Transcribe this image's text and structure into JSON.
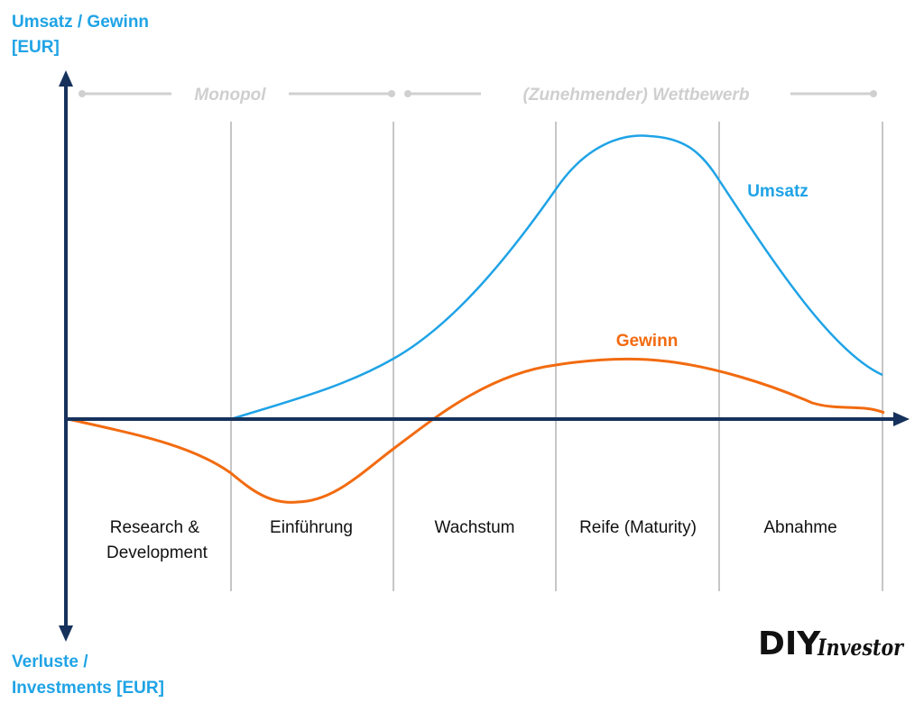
{
  "axes": {
    "y_positive_label": [
      "Umsatz / Gewinn",
      "[EUR]"
    ],
    "y_negative_label": [
      "Verluste /",
      "Investments [EUR]"
    ]
  },
  "eras": [
    {
      "label": "Monopol"
    },
    {
      "label": "(Zunehmender) Wettbewerb"
    }
  ],
  "phases": [
    {
      "label": [
        "Research &",
        "Development"
      ]
    },
    {
      "label": [
        "Einführung"
      ]
    },
    {
      "label": [
        "Wachstum"
      ]
    },
    {
      "label": [
        "Reife (Maturity)"
      ]
    },
    {
      "label": [
        "Abnahme"
      ]
    }
  ],
  "curves": {
    "umsatz": {
      "label": "Umsatz",
      "color": "#1fa3e6"
    },
    "gewinn": {
      "label": "Gewinn",
      "color": "#f26b10"
    }
  },
  "colors": {
    "axis": "#16325c",
    "divider": "#8c8c8c",
    "era_line": "#d0d0d0"
  },
  "logo": {
    "diy": "DIY",
    "investor": "Investor"
  }
}
